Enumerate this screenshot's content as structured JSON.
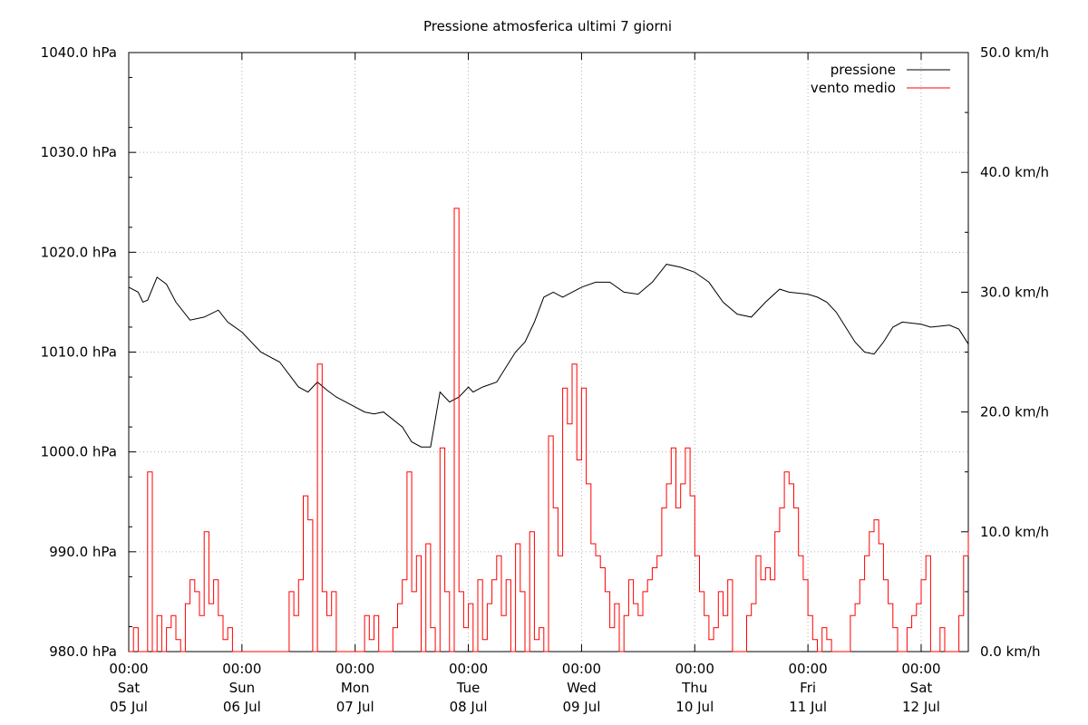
{
  "chart_data": {
    "type": "line",
    "title": "Pressione atmosferica ultimi 7 giorni",
    "xlabel": "",
    "ylabel": "",
    "grid": true,
    "legend_position": "top-right",
    "x_ticks": [
      {
        "time": "00:00",
        "day": "Sat",
        "date": "05 Jul"
      },
      {
        "time": "00:00",
        "day": "Sun",
        "date": "06 Jul"
      },
      {
        "time": "00:00",
        "day": "Mon",
        "date": "07 Jul"
      },
      {
        "time": "00:00",
        "day": "Tue",
        "date": "08 Jul"
      },
      {
        "time": "00:00",
        "day": "Wed",
        "date": "09 Jul"
      },
      {
        "time": "00:00",
        "day": "Thu",
        "date": "10 Jul"
      },
      {
        "time": "00:00",
        "day": "Fri",
        "date": "11 Jul"
      },
      {
        "time": "00:00",
        "day": "Sat",
        "date": "12 Jul"
      }
    ],
    "x_range": [
      "05 Jul 00:00",
      "12 Jul 10:00"
    ],
    "y_left": {
      "range": [
        980,
        1040
      ],
      "ticks": [
        "980.0 hPa",
        "990.0 hPa",
        "1000.0 hPa",
        "1010.0 hPa",
        "1020.0 hPa",
        "1030.0 hPa",
        "1040.0 hPa"
      ]
    },
    "y_right": {
      "range": [
        0,
        50
      ],
      "ticks": [
        "0.0 km/h",
        "10.0 km/h",
        "20.0 km/h",
        "30.0 km/h",
        "40.0 km/h",
        "50.0 km/h"
      ]
    },
    "series": [
      {
        "name": "pressione",
        "color": "#000000",
        "axis": "left",
        "x": [
          "05 Jul 00:00",
          "05 Jul 02:00",
          "05 Jul 03:00",
          "05 Jul 04:00",
          "05 Jul 06:00",
          "05 Jul 08:00",
          "05 Jul 10:00",
          "05 Jul 13:00",
          "05 Jul 16:00",
          "05 Jul 19:00",
          "05 Jul 21:00",
          "06 Jul 00:00",
          "06 Jul 04:00",
          "06 Jul 08:00",
          "06 Jul 12:00",
          "06 Jul 14:00",
          "06 Jul 16:00",
          "06 Jul 18:00",
          "06 Jul 20:00",
          "07 Jul 00:00",
          "07 Jul 02:00",
          "07 Jul 04:00",
          "07 Jul 06:00",
          "07 Jul 10:00",
          "07 Jul 12:00",
          "07 Jul 14:00",
          "07 Jul 16:00",
          "07 Jul 18:00",
          "07 Jul 20:00",
          "07 Jul 22:00",
          "07 Jul 23:00",
          "08 Jul 00:00",
          "08 Jul 01:00",
          "08 Jul 03:00",
          "08 Jul 06:00",
          "08 Jul 08:00",
          "08 Jul 10:00",
          "08 Jul 12:00",
          "08 Jul 14:00",
          "08 Jul 16:00",
          "08 Jul 18:00",
          "08 Jul 20:00",
          "08 Jul 22:00",
          "09 Jul 00:00",
          "09 Jul 03:00",
          "09 Jul 06:00",
          "09 Jul 09:00",
          "09 Jul 12:00",
          "09 Jul 15:00",
          "09 Jul 18:00",
          "09 Jul 21:00",
          "10 Jul 00:00",
          "10 Jul 03:00",
          "10 Jul 06:00",
          "10 Jul 09:00",
          "10 Jul 12:00",
          "10 Jul 15:00",
          "10 Jul 18:00",
          "10 Jul 20:00",
          "11 Jul 00:00",
          "11 Jul 02:00",
          "11 Jul 04:00",
          "11 Jul 06:00",
          "11 Jul 08:00",
          "11 Jul 10:00",
          "11 Jul 12:00",
          "11 Jul 14:00",
          "11 Jul 16:00",
          "11 Jul 18:00",
          "11 Jul 20:00",
          "12 Jul 00:00",
          "12 Jul 02:00",
          "12 Jul 04:00",
          "12 Jul 06:00",
          "12 Jul 08:00",
          "12 Jul 10:00"
        ],
        "values": [
          1016.5,
          1016.0,
          1015.0,
          1015.2,
          1017.5,
          1016.8,
          1015.0,
          1013.2,
          1013.5,
          1014.2,
          1013.0,
          1012.0,
          1010.0,
          1009.0,
          1006.5,
          1006.0,
          1007.0,
          1006.2,
          1005.5,
          1004.5,
          1004.0,
          1003.8,
          1004.0,
          1002.5,
          1001.0,
          1000.5,
          1000.5,
          1006.0,
          1005.0,
          1005.5,
          1006.0,
          1006.5,
          1006.0,
          1006.5,
          1007.0,
          1008.5,
          1010.0,
          1011.0,
          1013.0,
          1015.5,
          1016.0,
          1015.5,
          1016.0,
          1016.5,
          1017.0,
          1017.0,
          1016.0,
          1015.8,
          1017.0,
          1018.8,
          1018.5,
          1018.0,
          1017.0,
          1015.0,
          1013.8,
          1013.5,
          1015.0,
          1016.3,
          1016.0,
          1015.8,
          1015.5,
          1015.0,
          1014.0,
          1012.5,
          1011.0,
          1010.0,
          1009.8,
          1011.0,
          1012.5,
          1013.0,
          1012.8,
          1012.5,
          1012.6,
          1012.7,
          1012.3,
          1010.8
        ]
      },
      {
        "name": "vento medio",
        "color": "#ff0000",
        "axis": "right",
        "x": [
          "05 Jul 00:00",
          "05 Jul 01:00",
          "05 Jul 02:00",
          "05 Jul 03:00",
          "05 Jul 04:00",
          "05 Jul 05:00",
          "05 Jul 06:00",
          "05 Jul 07:00",
          "05 Jul 08:00",
          "05 Jul 09:00",
          "05 Jul 10:00",
          "05 Jul 11:00",
          "05 Jul 12:00",
          "05 Jul 13:00",
          "05 Jul 14:00",
          "05 Jul 15:00",
          "05 Jul 16:00",
          "05 Jul 17:00",
          "05 Jul 18:00",
          "05 Jul 19:00",
          "05 Jul 20:00",
          "05 Jul 21:00",
          "05 Jul 22:00",
          "05 Jul 23:00",
          "06 Jul 00:00",
          "06 Jul 01:00",
          "06 Jul 02:00",
          "06 Jul 03:00",
          "06 Jul 04:00",
          "06 Jul 05:00",
          "06 Jul 06:00",
          "06 Jul 07:00",
          "06 Jul 08:00",
          "06 Jul 09:00",
          "06 Jul 10:00",
          "06 Jul 11:00",
          "06 Jul 12:00",
          "06 Jul 13:00",
          "06 Jul 14:00",
          "06 Jul 15:00",
          "06 Jul 16:00",
          "06 Jul 17:00",
          "06 Jul 18:00",
          "06 Jul 19:00",
          "06 Jul 20:00",
          "06 Jul 21:00",
          "06 Jul 22:00",
          "06 Jul 23:00",
          "07 Jul 00:00",
          "07 Jul 01:00",
          "07 Jul 02:00",
          "07 Jul 03:00",
          "07 Jul 04:00",
          "07 Jul 05:00",
          "07 Jul 06:00",
          "07 Jul 07:00",
          "07 Jul 08:00",
          "07 Jul 09:00",
          "07 Jul 10:00",
          "07 Jul 11:00",
          "07 Jul 12:00",
          "07 Jul 13:00",
          "07 Jul 14:00",
          "07 Jul 15:00",
          "07 Jul 16:00",
          "07 Jul 17:00",
          "07 Jul 18:00",
          "07 Jul 19:00",
          "07 Jul 20:00",
          "07 Jul 21:00",
          "07 Jul 22:00",
          "07 Jul 23:00",
          "08 Jul 00:00",
          "08 Jul 01:00",
          "08 Jul 02:00",
          "08 Jul 03:00",
          "08 Jul 04:00",
          "08 Jul 05:00",
          "08 Jul 06:00",
          "08 Jul 07:00",
          "08 Jul 08:00",
          "08 Jul 09:00",
          "08 Jul 10:00",
          "08 Jul 11:00",
          "08 Jul 12:00",
          "08 Jul 13:00",
          "08 Jul 14:00",
          "08 Jul 15:00",
          "08 Jul 16:00",
          "08 Jul 17:00",
          "08 Jul 18:00",
          "08 Jul 19:00",
          "08 Jul 20:00",
          "08 Jul 21:00",
          "08 Jul 22:00",
          "08 Jul 23:00",
          "09 Jul 00:00",
          "09 Jul 01:00",
          "09 Jul 02:00",
          "09 Jul 03:00",
          "09 Jul 04:00",
          "09 Jul 05:00",
          "09 Jul 06:00",
          "09 Jul 07:00",
          "09 Jul 08:00",
          "09 Jul 09:00",
          "09 Jul 10:00",
          "09 Jul 11:00",
          "09 Jul 12:00",
          "09 Jul 13:00",
          "09 Jul 14:00",
          "09 Jul 15:00",
          "09 Jul 16:00",
          "09 Jul 17:00",
          "09 Jul 18:00",
          "09 Jul 19:00",
          "09 Jul 20:00",
          "09 Jul 21:00",
          "09 Jul 22:00",
          "09 Jul 23:00",
          "10 Jul 00:00",
          "10 Jul 01:00",
          "10 Jul 02:00",
          "10 Jul 03:00",
          "10 Jul 04:00",
          "10 Jul 05:00",
          "10 Jul 06:00",
          "10 Jul 07:00",
          "10 Jul 08:00",
          "10 Jul 09:00",
          "10 Jul 10:00",
          "10 Jul 11:00",
          "10 Jul 12:00",
          "10 Jul 13:00",
          "10 Jul 14:00",
          "10 Jul 15:00",
          "10 Jul 16:00",
          "10 Jul 17:00",
          "10 Jul 18:00",
          "10 Jul 19:00",
          "10 Jul 20:00",
          "10 Jul 21:00",
          "10 Jul 22:00",
          "10 Jul 23:00",
          "11 Jul 00:00",
          "11 Jul 01:00",
          "11 Jul 02:00",
          "11 Jul 03:00",
          "11 Jul 04:00",
          "11 Jul 05:00",
          "11 Jul 06:00",
          "11 Jul 07:00",
          "11 Jul 08:00",
          "11 Jul 09:00",
          "11 Jul 10:00",
          "11 Jul 11:00",
          "11 Jul 12:00",
          "11 Jul 13:00",
          "11 Jul 14:00",
          "11 Jul 15:00",
          "11 Jul 16:00",
          "11 Jul 17:00",
          "11 Jul 18:00",
          "11 Jul 19:00",
          "11 Jul 20:00",
          "11 Jul 21:00",
          "11 Jul 22:00",
          "11 Jul 23:00",
          "12 Jul 00:00",
          "12 Jul 01:00",
          "12 Jul 02:00",
          "12 Jul 03:00",
          "12 Jul 04:00",
          "12 Jul 05:00",
          "12 Jul 06:00",
          "12 Jul 07:00",
          "12 Jul 08:00",
          "12 Jul 09:00",
          "12 Jul 10:00"
        ],
        "values": [
          0,
          2,
          0,
          0,
          15,
          0,
          3,
          0,
          2,
          3,
          1,
          0,
          4,
          6,
          5,
          3,
          10,
          4,
          6,
          3,
          1,
          2,
          0,
          0,
          0,
          0,
          0,
          0,
          0,
          0,
          0,
          0,
          0,
          0,
          5,
          3,
          6,
          13,
          11,
          0,
          24,
          5,
          3,
          5,
          0,
          0,
          0,
          0,
          0,
          0,
          3,
          1,
          3,
          0,
          0,
          0,
          2,
          4,
          6,
          15,
          5,
          8,
          0,
          9,
          2,
          0,
          17,
          5,
          0,
          37,
          5,
          2,
          4,
          0,
          6,
          1,
          4,
          6,
          8,
          3,
          6,
          0,
          9,
          5,
          0,
          10,
          1,
          2,
          0,
          18,
          12,
          8,
          22,
          19,
          24,
          16,
          22,
          14,
          9,
          8,
          7,
          5,
          2,
          4,
          0,
          3,
          6,
          4,
          3,
          5,
          6,
          7,
          8,
          12,
          14,
          17,
          12,
          14,
          17,
          13,
          8,
          5,
          3,
          1,
          2,
          5,
          3,
          6,
          0,
          0,
          0,
          3,
          4,
          8,
          6,
          7,
          6,
          10,
          12,
          15,
          14,
          12,
          8,
          6,
          3,
          1,
          0,
          2,
          1,
          0,
          0,
          0,
          0,
          3,
          4,
          6,
          8,
          10,
          11,
          9,
          6,
          4,
          2,
          0,
          0,
          2,
          3,
          4,
          6,
          8,
          0,
          0,
          2,
          0,
          0,
          0,
          3,
          8,
          10
        ]
      }
    ]
  }
}
